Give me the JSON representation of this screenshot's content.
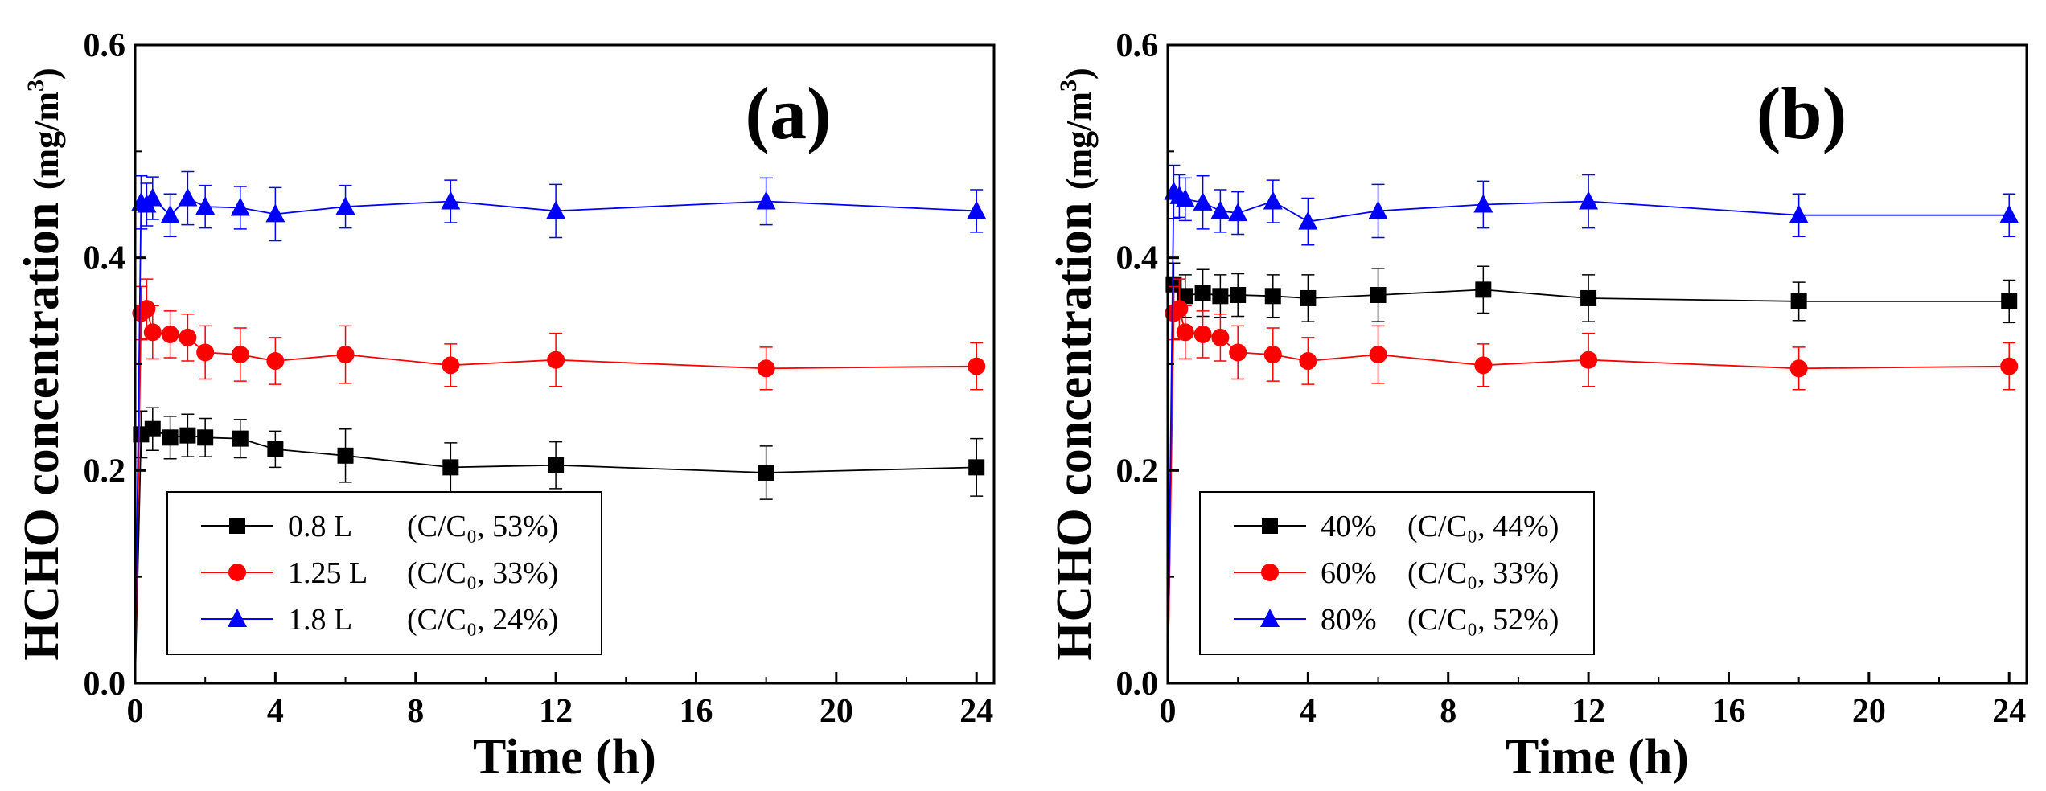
{
  "chart_data": [
    {
      "type": "line",
      "panel_label": "(a)",
      "xlabel": "Time (h)",
      "ylabel": "HCHO concentration",
      "ylabel_unit": "(mg/m",
      "ylabel_unit_sup": "3",
      "ylabel_unit_close": ")",
      "xlim": [
        0,
        24.5
      ],
      "ylim": [
        0,
        0.6
      ],
      "xticks": [
        "0",
        "4",
        "8",
        "12",
        "16",
        "20",
        "24"
      ],
      "yticks": [
        "0.0",
        "0.2",
        "0.4",
        "0.6"
      ],
      "legend_position": "lower-left",
      "series": [
        {
          "name": "0.8 L",
          "note": "(C/C₀, 53%)",
          "color": "#000000",
          "marker": "square",
          "x": [
            0,
            0.17,
            0.5,
            1,
            1.5,
            2,
            3,
            4,
            6,
            9,
            12,
            18,
            24
          ],
          "y": [
            0,
            0.234,
            0.239,
            0.231,
            0.233,
            0.231,
            0.23,
            0.22,
            0.214,
            0.203,
            0.205,
            0.198,
            0.203
          ],
          "err": [
            0,
            0.022,
            0.02,
            0.02,
            0.02,
            0.018,
            0.018,
            0.017,
            0.025,
            0.023,
            0.022,
            0.025,
            0.027
          ]
        },
        {
          "name": "1.25 L",
          "note": "(C/C₀, 33%)",
          "color": "#ff0000",
          "marker": "circle",
          "x": [
            0,
            0.17,
            0.33,
            0.5,
            1,
            1.5,
            2,
            3,
            4,
            6,
            9,
            12,
            18,
            24
          ],
          "y": [
            0,
            0.348,
            0.352,
            0.33,
            0.328,
            0.325,
            0.311,
            0.309,
            0.303,
            0.309,
            0.299,
            0.304,
            0.296,
            0.298
          ],
          "err": [
            0,
            0.025,
            0.028,
            0.025,
            0.022,
            0.022,
            0.025,
            0.025,
            0.022,
            0.027,
            0.02,
            0.025,
            0.02,
            0.022
          ]
        },
        {
          "name": "1.8 L",
          "note": "(C/C₀, 24%)",
          "color": "#0000ff",
          "marker": "triangle",
          "x": [
            0,
            0.17,
            0.33,
            0.5,
            1,
            1.5,
            2,
            3,
            4,
            6,
            9,
            12,
            18,
            24
          ],
          "y": [
            0,
            0.452,
            0.45,
            0.456,
            0.44,
            0.456,
            0.448,
            0.447,
            0.441,
            0.448,
            0.453,
            0.444,
            0.453,
            0.444
          ],
          "err": [
            0,
            0.025,
            0.02,
            0.02,
            0.02,
            0.025,
            0.02,
            0.02,
            0.025,
            0.02,
            0.02,
            0.025,
            0.022,
            0.02
          ]
        }
      ]
    },
    {
      "type": "line",
      "panel_label": "(b)",
      "xlabel": "Time (h)",
      "ylabel": "HCHO concentration",
      "ylabel_unit": "(mg/m",
      "ylabel_unit_sup": "3",
      "ylabel_unit_close": ")",
      "xlim": [
        0,
        24.5
      ],
      "ylim": [
        0,
        0.6
      ],
      "xticks": [
        "0",
        "4",
        "8",
        "12",
        "16",
        "20",
        "24"
      ],
      "yticks": [
        "0.0",
        "0.2",
        "0.4",
        "0.6"
      ],
      "legend_position": "lower-left",
      "series": [
        {
          "name": "40%",
          "note": "(C/C₀, 44%)",
          "color": "#000000",
          "marker": "square",
          "x": [
            0,
            0.17,
            0.5,
            1,
            1.5,
            2,
            3,
            4,
            6,
            9,
            12,
            18,
            24
          ],
          "y": [
            0,
            0.375,
            0.364,
            0.367,
            0.364,
            0.365,
            0.364,
            0.362,
            0.365,
            0.37,
            0.362,
            0.359,
            0.359
          ],
          "err": [
            0,
            0.02,
            0.02,
            0.022,
            0.02,
            0.02,
            0.02,
            0.022,
            0.025,
            0.022,
            0.022,
            0.018,
            0.02
          ]
        },
        {
          "name": "60%",
          "note": "(C/C₀, 33%)",
          "color": "#ff0000",
          "marker": "circle",
          "x": [
            0,
            0.17,
            0.33,
            0.5,
            1,
            1.5,
            2,
            3,
            4,
            6,
            9,
            12,
            18,
            24
          ],
          "y": [
            0,
            0.348,
            0.352,
            0.33,
            0.328,
            0.325,
            0.311,
            0.309,
            0.303,
            0.309,
            0.299,
            0.304,
            0.296,
            0.298
          ],
          "err": [
            0,
            0.025,
            0.028,
            0.025,
            0.022,
            0.022,
            0.025,
            0.025,
            0.022,
            0.027,
            0.02,
            0.025,
            0.02,
            0.022
          ]
        },
        {
          "name": "80%",
          "note": "(C/C₀, 52%)",
          "color": "#0000ff",
          "marker": "triangle",
          "x": [
            0,
            0.17,
            0.33,
            0.5,
            1,
            1.5,
            2,
            3,
            4,
            6,
            9,
            12,
            18,
            24
          ],
          "y": [
            0,
            0.462,
            0.458,
            0.455,
            0.452,
            0.444,
            0.442,
            0.453,
            0.434,
            0.444,
            0.45,
            0.453,
            0.44,
            0.44
          ],
          "err": [
            0,
            0.025,
            0.02,
            0.02,
            0.025,
            0.02,
            0.02,
            0.02,
            0.022,
            0.025,
            0.022,
            0.025,
            0.02,
            0.02
          ]
        }
      ]
    }
  ]
}
